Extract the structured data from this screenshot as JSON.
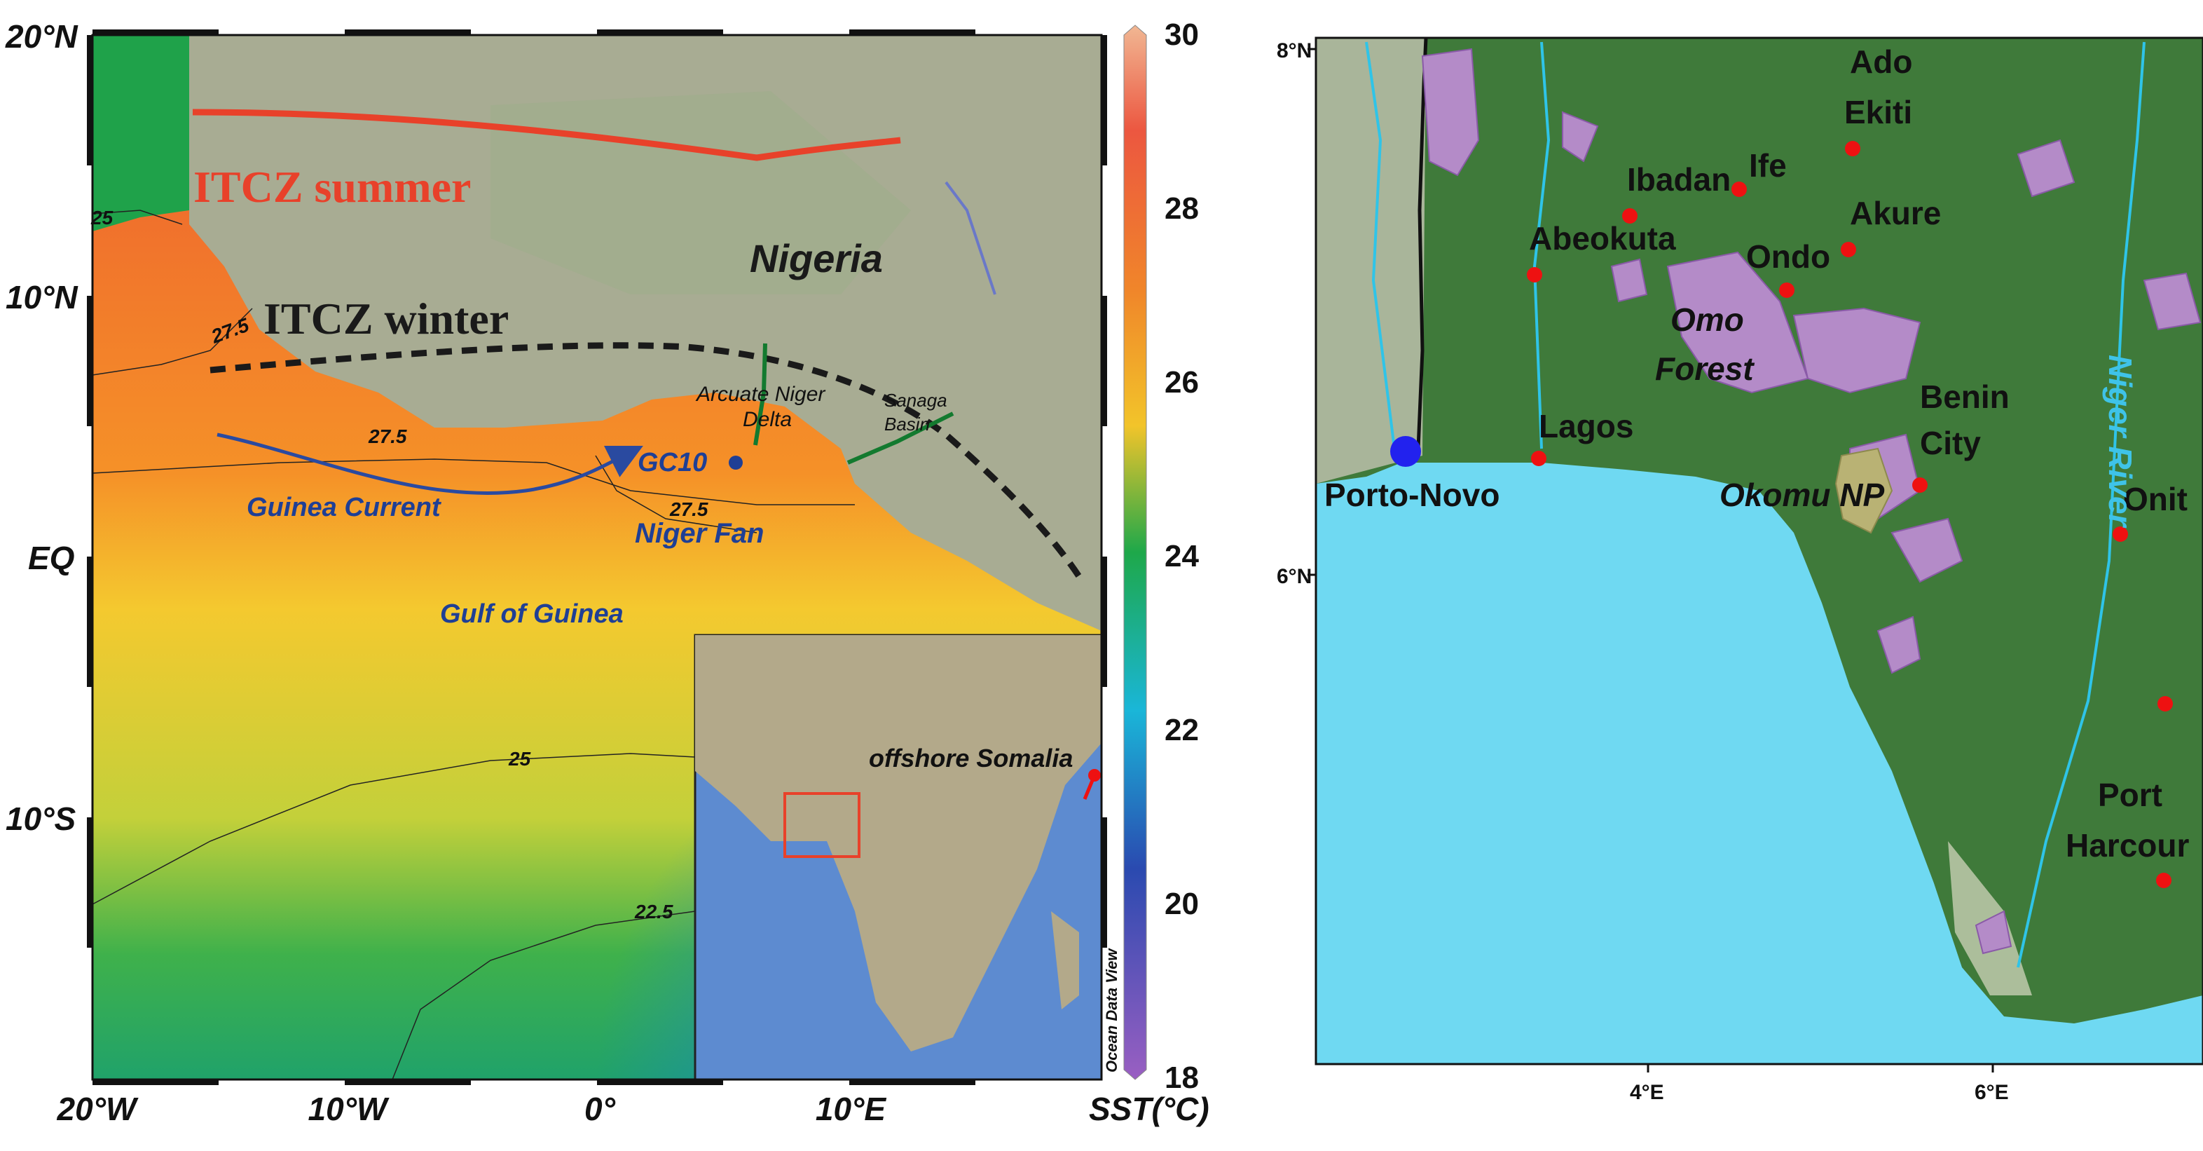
{
  "left_map": {
    "lat_labels": [
      "20°N",
      "10°N",
      "EQ",
      "10°S"
    ],
    "lon_labels": [
      "20°W",
      "10°W",
      "0°",
      "10°E"
    ],
    "colorbar": {
      "ticks": [
        "30",
        "28",
        "26",
        "24",
        "22",
        "20",
        "18"
      ],
      "unit_label": "SST(°C)",
      "credit": "Ocean Data View"
    },
    "annotations": {
      "itcz_summer": "ITCZ summer",
      "itcz_winter": "ITCZ winter",
      "nigeria": "Nigeria",
      "arcuate_line1": "Arcuate Niger",
      "arcuate_line2": "Delta",
      "sanaga_line1": "Sanaga",
      "sanaga_line2": "Basin",
      "gc10": "GC10",
      "guinea_current": "Guinea Current",
      "niger_fan": "Niger Fan",
      "gulf_of_guinea": "Gulf of Guinea",
      "offshore_somalia": "offshore Somalia"
    },
    "contours": [
      "25",
      "27.5",
      "27.5",
      "27.5",
      "25",
      "22.5"
    ],
    "colors": {
      "itcz_summer": "#e8412a",
      "itcz_winter": "#1a1a1a",
      "current": "#2a4aa0",
      "label_blue": "#1f3f95"
    }
  },
  "right_map": {
    "lat_labels": [
      "8°N",
      "6°N"
    ],
    "lon_labels": [
      "4°E",
      "6°E"
    ],
    "cities": [
      "Ado",
      "Ekiti",
      "Ibadan",
      "Ife",
      "Abeokuta",
      "Akure",
      "Ondo",
      "Lagos",
      "Benin",
      "City",
      "Onit",
      "Port",
      "Harcour",
      "Porto-Novo"
    ],
    "areas": [
      "Omo",
      "Forest",
      "Okomu NP"
    ],
    "river": "Niger River",
    "colors": {
      "sea": "#6fd9f2",
      "land": "#3f7a3a",
      "reserve": "#b48bc8",
      "city_dot": "#ee1111",
      "porto_dot": "#2222ee"
    }
  }
}
